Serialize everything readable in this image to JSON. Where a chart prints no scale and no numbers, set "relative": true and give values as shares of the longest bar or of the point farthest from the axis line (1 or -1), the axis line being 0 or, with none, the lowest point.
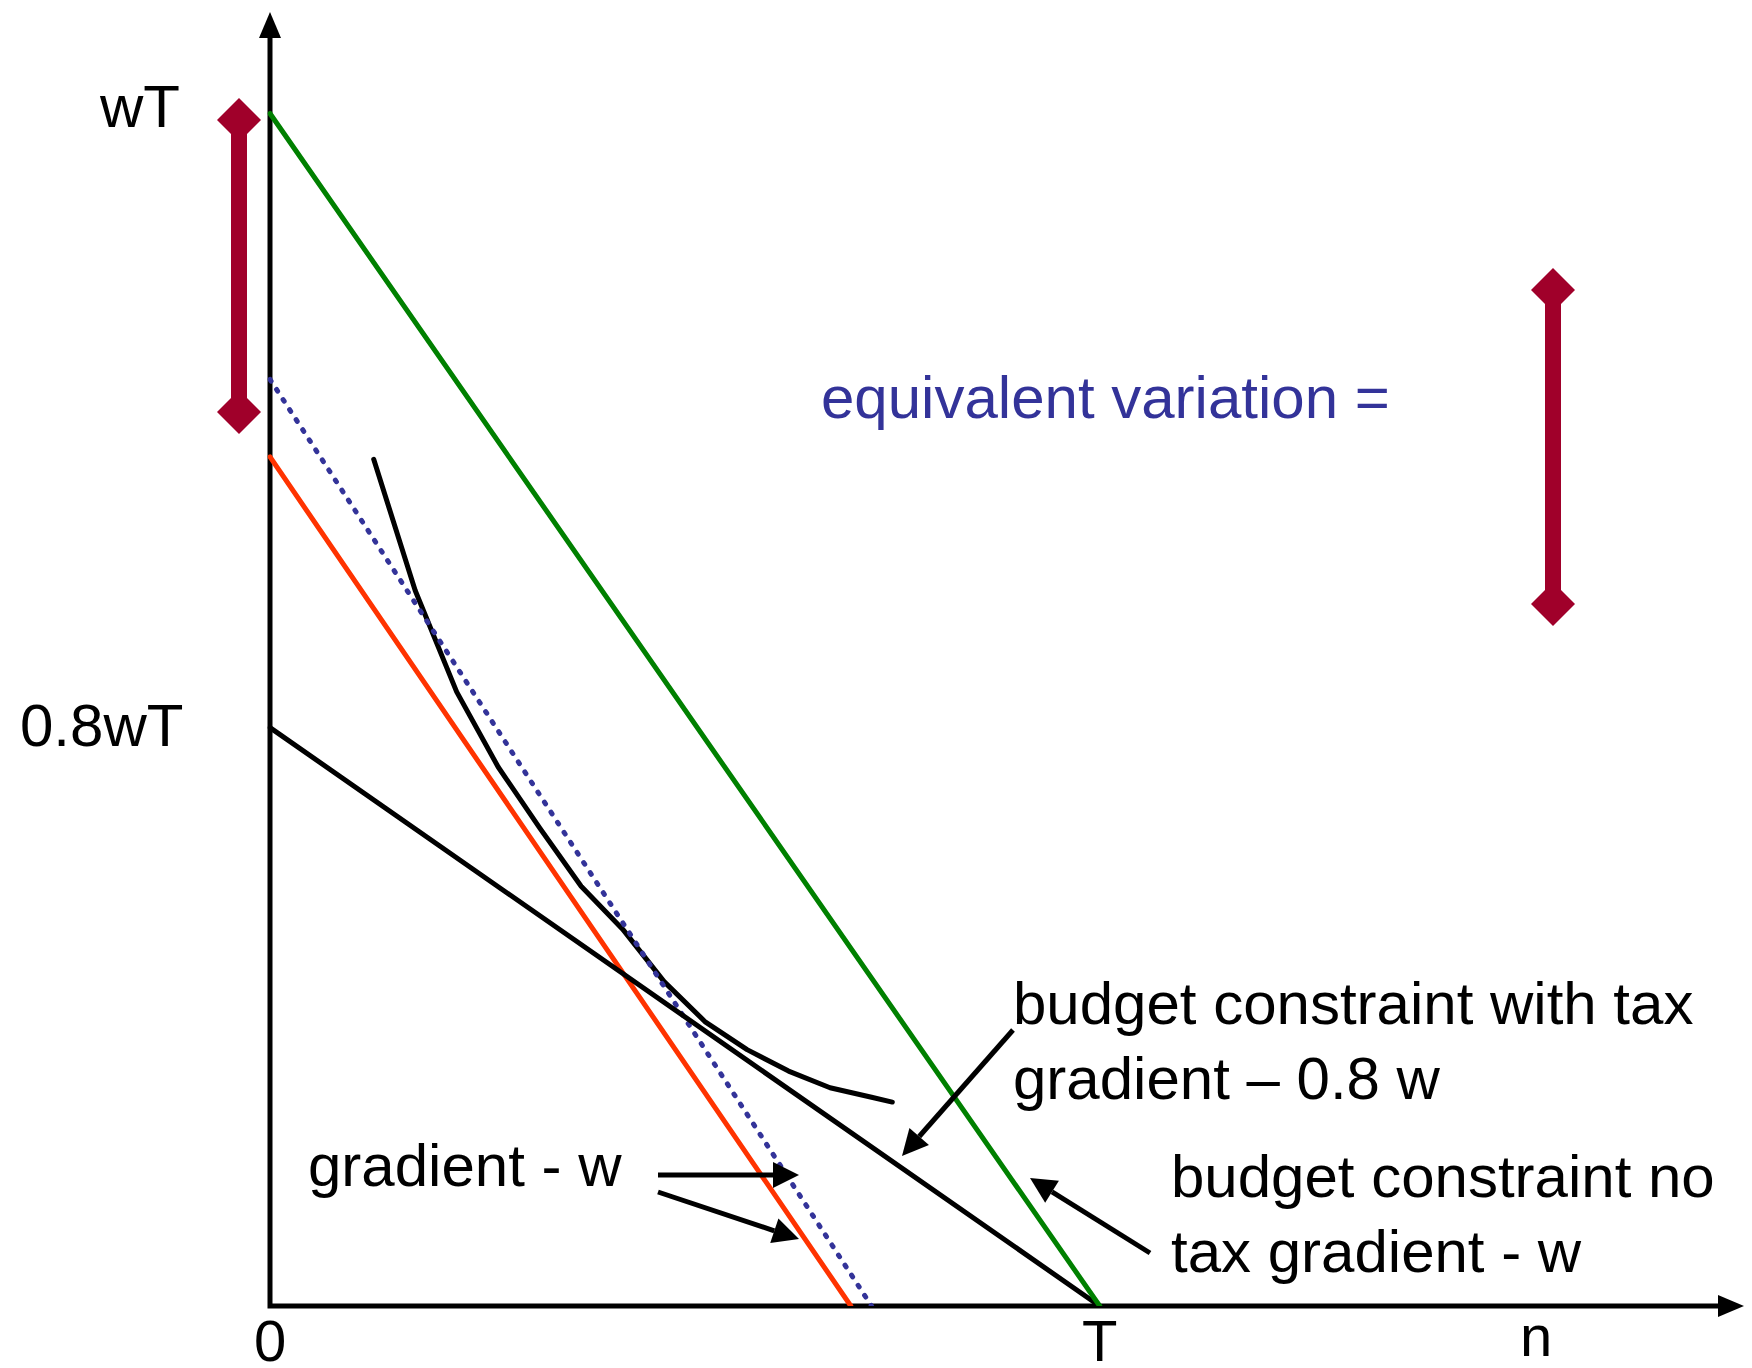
{
  "chart_data": {
    "type": "line",
    "relative": true,
    "xlabel": "n",
    "legend": false,
    "categories": [
      "0",
      null,
      null,
      null,
      null,
      null,
      null,
      null,
      null,
      null,
      null,
      null,
      null,
      null,
      null,
      null,
      null,
      null,
      null,
      null,
      null,
      null,
      null,
      null,
      null,
      null,
      null,
      null,
      null,
      null,
      null,
      null,
      null,
      null,
      null,
      null,
      null,
      null,
      null,
      null,
      "T",
      null,
      null,
      null,
      null,
      null,
      null,
      null,
      null,
      null,
      null,
      null,
      null,
      null,
      null,
      null,
      null,
      null,
      null,
      null,
      null,
      null,
      null,
      null,
      null,
      null,
      null,
      null,
      null,
      null,
      null
    ],
    "series": [
      {
        "color": "#008000",
        "values": [
          1,
          null,
          null,
          null,
          null,
          null,
          null,
          null,
          null,
          null,
          null,
          null,
          null,
          null,
          null,
          null,
          null,
          null,
          null,
          null,
          null,
          null,
          null,
          null,
          null,
          null,
          null,
          null,
          null,
          null,
          null,
          null,
          null,
          null,
          null,
          null,
          null,
          null,
          null,
          null,
          0,
          null,
          null,
          null,
          null,
          null,
          null,
          null,
          null,
          null,
          null,
          null,
          null,
          null,
          null,
          null,
          null,
          null,
          null,
          null,
          null,
          null,
          null,
          null,
          null,
          null,
          null,
          null,
          null,
          null,
          null
        ]
      },
      {
        "color": "#000000",
        "values": [
          0.485,
          null,
          null,
          null,
          null,
          null,
          null,
          null,
          null,
          null,
          null,
          null,
          null,
          null,
          null,
          null,
          null,
          null,
          null,
          null,
          null,
          null,
          null,
          null,
          null,
          null,
          null,
          null,
          null,
          null,
          null,
          null,
          null,
          null,
          null,
          null,
          null,
          null,
          null,
          null,
          0,
          null,
          null,
          null,
          null,
          null,
          null,
          null,
          null,
          null,
          null,
          null,
          null,
          null,
          null,
          null,
          null,
          null,
          null,
          null,
          null,
          null,
          null,
          null,
          null,
          null,
          null,
          null,
          null,
          null,
          null
        ]
      },
      {
        "color": "#ff3300",
        "values": [
          0.712,
          null,
          null,
          null,
          null,
          null,
          null,
          null,
          null,
          null,
          null,
          null,
          null,
          null,
          null,
          null,
          null,
          null,
          null,
          null,
          null,
          null,
          null,
          null,
          null,
          null,
          null,
          null,
          0,
          null,
          null,
          null,
          null,
          null,
          null,
          null,
          null,
          null,
          null,
          null,
          null,
          null,
          null,
          null,
          null,
          null,
          null,
          null,
          null,
          null,
          null,
          null,
          null,
          null,
          null,
          null,
          null,
          null,
          null,
          null,
          null,
          null,
          null,
          null,
          null,
          null,
          null,
          null,
          null,
          null,
          null
        ]
      },
      {
        "color": "#333399",
        "line_style": "dotted",
        "values": [
          0.777,
          null,
          null,
          null,
          null,
          null,
          null,
          null,
          null,
          null,
          null,
          null,
          null,
          null,
          null,
          null,
          null,
          null,
          null,
          null,
          null,
          null,
          null,
          null,
          null,
          null,
          null,
          null,
          null,
          0,
          null,
          null,
          null,
          null,
          null,
          null,
          null,
          null,
          null,
          null,
          null,
          null,
          null,
          null,
          null,
          null,
          null,
          null,
          null,
          null,
          null,
          null,
          null,
          null,
          null,
          null,
          null,
          null,
          null,
          null,
          null,
          null,
          null,
          null,
          null,
          null,
          null,
          null,
          null,
          null,
          null
        ]
      },
      {
        "color": "#000000",
        "values": [
          null,
          null,
          null,
          null,
          null,
          0.71,
          null,
          0.6,
          null,
          0.515,
          null,
          0.452,
          null,
          0.401,
          null,
          0.352,
          null,
          0.316,
          null,
          0.272,
          null,
          0.238,
          null,
          0.215,
          null,
          0.197,
          null,
          0.183,
          null,
          0.175,
          0.171,
          null,
          null,
          null,
          null,
          null,
          null,
          null,
          null,
          null,
          null,
          null,
          null,
          null,
          null,
          null,
          null,
          null,
          null,
          null,
          null,
          null,
          null,
          null,
          null,
          null,
          null,
          null,
          null,
          null,
          null,
          null,
          null,
          null,
          null,
          null,
          null,
          null,
          null,
          null,
          null
        ]
      }
    ],
    "annotations": [
      "equivalent variation =",
      "gradient - w",
      "budget constraint with tax gradient – 0.8 w",
      "budget constraint no tax gradient - w",
      "wT",
      "0.8wT"
    ]
  }
}
